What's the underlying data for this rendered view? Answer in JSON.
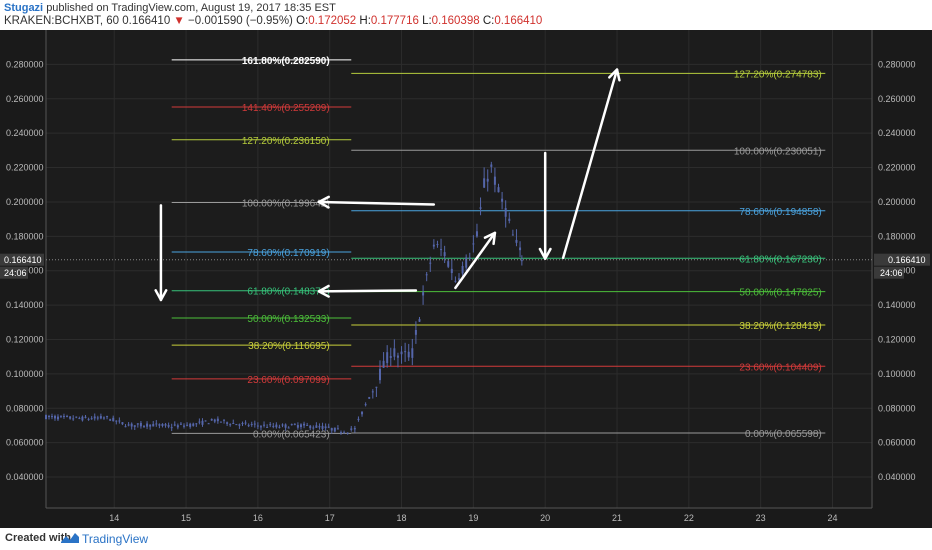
{
  "header": {
    "author": "Stugazi",
    "published_text": "published on TradingView.com, August 19, 2017 18:35 EST",
    "symbol": "KRAKEN:BCHXBT, 60",
    "last": "0.166410",
    "change": "−0.001590 (−0.95%)",
    "o_label": "O:",
    "o_value": "0.172052",
    "h_label": "H:",
    "h_value": "0.177716",
    "l_label": "L:",
    "l_value": "0.160398",
    "c_label": "C:",
    "c_value": "0.166410"
  },
  "footer": {
    "created_with": "Created with",
    "brand": "TradingView"
  },
  "colors": {
    "background": "#1c1c1c",
    "grid": "#2c2c2c",
    "candle": "#5566aa",
    "fib_100": "#9a9a9a",
    "fib_786": "#4aa3df",
    "fib_618": "#36c27a",
    "fib_50": "#4cbf3a",
    "fib_382": "#c9cf3a",
    "fib_236": "#d23a3a",
    "fib_0": "#9a9a9a",
    "fib_127": "#b5cc3c",
    "fib_141": "#d23a3a",
    "fib_161": "#ffffff",
    "arrow": "#ffffff"
  },
  "chart_data": {
    "type": "candlestick",
    "x_axis": {
      "ticks": [
        "14",
        "15",
        "16",
        "17",
        "18",
        "19",
        "20",
        "21",
        "22",
        "23",
        "24"
      ],
      "range": [
        13.05,
        24.55
      ]
    },
    "y_axis": {
      "ticks": [
        "0.280000",
        "0.260000",
        "0.240000",
        "0.220000",
        "0.200000",
        "0.180000",
        "0.160000",
        "0.140000",
        "0.120000",
        "0.100000",
        "0.080000",
        "0.060000",
        "0.040000"
      ],
      "range": [
        0.022,
        0.3
      ]
    },
    "last_price": {
      "value": "0.166410",
      "countdown": "24:06"
    },
    "price_series": [
      [
        13.05,
        0.075
      ],
      [
        13.3,
        0.0745
      ],
      [
        13.6,
        0.074
      ],
      [
        13.9,
        0.0745
      ],
      [
        14.2,
        0.07
      ],
      [
        14.5,
        0.0705
      ],
      [
        14.8,
        0.0695
      ],
      [
        15.1,
        0.0705
      ],
      [
        15.4,
        0.073
      ],
      [
        15.7,
        0.071
      ],
      [
        16.0,
        0.07
      ],
      [
        16.3,
        0.0695
      ],
      [
        16.6,
        0.07
      ],
      [
        16.9,
        0.069
      ],
      [
        17.2,
        0.0665
      ],
      [
        17.35,
        0.068
      ],
      [
        17.5,
        0.082
      ],
      [
        17.7,
        0.1
      ],
      [
        17.85,
        0.113
      ],
      [
        18.0,
        0.11
      ],
      [
        18.15,
        0.112
      ],
      [
        18.3,
        0.145
      ],
      [
        18.45,
        0.175
      ],
      [
        18.6,
        0.17
      ],
      [
        18.75,
        0.155
      ],
      [
        18.9,
        0.165
      ],
      [
        19.05,
        0.18
      ],
      [
        19.15,
        0.21
      ],
      [
        19.25,
        0.22
      ],
      [
        19.35,
        0.205
      ],
      [
        19.45,
        0.195
      ],
      [
        19.55,
        0.18
      ],
      [
        19.65,
        0.17
      ],
      [
        19.7,
        0.1664
      ]
    ],
    "fib_left": [
      {
        "label": "161.80%(0.282590)",
        "value": 0.28259,
        "color": "fib_161"
      },
      {
        "label": "141.40%(0.255209)",
        "value": 0.255209,
        "color": "fib_141"
      },
      {
        "label": "127.20%(0.236150)",
        "value": 0.23615,
        "color": "fib_127"
      },
      {
        "label": "100.00%(0.199642)",
        "value": 0.199642,
        "color": "fib_100"
      },
      {
        "label": "78.60%(0.170919)",
        "value": 0.170919,
        "color": "fib_786"
      },
      {
        "label": "61.80%(0.148371)",
        "value": 0.148371,
        "color": "fib_618"
      },
      {
        "label": "50.00%(0.132533)",
        "value": 0.132533,
        "color": "fib_50"
      },
      {
        "label": "38.20%(0.116695)",
        "value": 0.116695,
        "color": "fib_382"
      },
      {
        "label": "23.60%(0.097099)",
        "value": 0.097099,
        "color": "fib_236"
      },
      {
        "label": "0.00%(0.065423)",
        "value": 0.065423,
        "color": "fib_0"
      }
    ],
    "fib_right": [
      {
        "label": "127.20%(0.274783)",
        "value": 0.274783,
        "color": "fib_127"
      },
      {
        "label": "100.00%(0.230051)",
        "value": 0.230051,
        "color": "fib_100"
      },
      {
        "label": "78.60%(0.194858)",
        "value": 0.194858,
        "color": "fib_786"
      },
      {
        "label": "61.80%(0.167230)",
        "value": 0.16723,
        "color": "fib_618"
      },
      {
        "label": "50.00%(0.147825)",
        "value": 0.147825,
        "color": "fib_50"
      },
      {
        "label": "38.20%(0.128419)",
        "value": 0.128419,
        "color": "fib_382"
      },
      {
        "label": "23.60%(0.104409)",
        "value": 0.104409,
        "color": "fib_236"
      },
      {
        "label": "0.00%(0.065598)",
        "value": 0.065598,
        "color": "fib_0"
      }
    ],
    "arrows": [
      {
        "name": "arrow-down-left",
        "from": [
          14.65,
          0.198
        ],
        "to": [
          14.65,
          0.143
        ]
      },
      {
        "name": "arrow-to-left-100",
        "from": [
          18.45,
          0.1985
        ],
        "to": [
          16.85,
          0.2
        ]
      },
      {
        "name": "arrow-to-left-618",
        "from": [
          18.2,
          0.1485
        ],
        "to": [
          16.85,
          0.148
        ]
      },
      {
        "name": "arrow-up-mid",
        "from": [
          18.75,
          0.15
        ],
        "to": [
          19.3,
          0.182
        ]
      },
      {
        "name": "arrow-down-mid",
        "from": [
          20.0,
          0.2285
        ],
        "to": [
          20.0,
          0.167
        ]
      },
      {
        "name": "arrow-up-right",
        "from": [
          20.25,
          0.1675
        ],
        "to": [
          21.0,
          0.277
        ]
      }
    ]
  }
}
